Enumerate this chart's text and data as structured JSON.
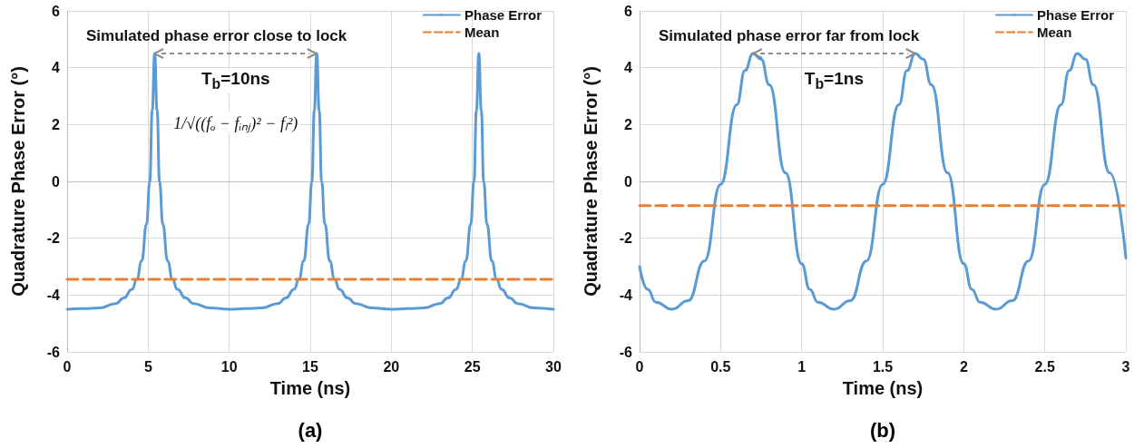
{
  "chart_data": [
    {
      "type": "line",
      "title": "Simulated phase error close to lock",
      "xlabel": "Time (ns)",
      "ylabel": "Quadrature Phase Error (°)",
      "xlim": [
        0,
        30
      ],
      "xticks": [
        0,
        5,
        10,
        15,
        20,
        25,
        30
      ],
      "ylim": [
        -6,
        6
      ],
      "yticks": [
        -6,
        -4,
        -2,
        0,
        2,
        4,
        6
      ],
      "grid": true,
      "legend": "top right",
      "marker": "none",
      "annotations": [
        "(a)",
        "T$_{b}$=10ns",
        "1/√((fₒ − fᵢₙⱼ)² − fₗ²)"
      ],
      "series": [
        {
          "name": "Phase Error",
          "color": "#5b9bd5",
          "line_style": "solid",
          "x": [
            0,
            1,
            2,
            3,
            3.5,
            4,
            4.3,
            4.6,
            4.9,
            5.1,
            5.25,
            5.4,
            5.55,
            5.7,
            5.9,
            6.2,
            6.5,
            6.8,
            7.3,
            7.8,
            8.8,
            10,
            11,
            12,
            13,
            13.5,
            14,
            14.3,
            14.6,
            14.9,
            15.1,
            15.25,
            15.4,
            15.55,
            15.7,
            15.9,
            16.2,
            16.5,
            16.8,
            17.3,
            17.8,
            18.8,
            20,
            21,
            22,
            23,
            23.5,
            24,
            24.3,
            24.6,
            24.9,
            25.1,
            25.25,
            25.4,
            25.55,
            25.7,
            25.9,
            26.2,
            26.5,
            26.8,
            27.3,
            27.8,
            28.8,
            30
          ],
          "values": [
            -4.5,
            -4.48,
            -4.45,
            -4.3,
            -4.1,
            -3.8,
            -3.45,
            -2.8,
            -1.5,
            0,
            2.5,
            4.5,
            2.5,
            0,
            -1.5,
            -2.8,
            -3.45,
            -3.8,
            -4.1,
            -4.3,
            -4.45,
            -4.5,
            -4.48,
            -4.45,
            -4.3,
            -4.1,
            -3.8,
            -3.45,
            -2.8,
            -1.5,
            0,
            2.5,
            4.5,
            2.5,
            0,
            -1.5,
            -2.8,
            -3.45,
            -3.8,
            -4.1,
            -4.3,
            -4.45,
            -4.5,
            -4.48,
            -4.45,
            -4.3,
            -4.1,
            -3.8,
            -3.45,
            -2.8,
            -1.5,
            0,
            2.5,
            4.5,
            2.5,
            0,
            -1.5,
            -2.8,
            -3.45,
            -3.8,
            -4.1,
            -4.3,
            -4.45,
            -4.5
          ]
        },
        {
          "name": "Mean",
          "color": "#ed7d31",
          "line_style": "dashed",
          "x": [
            0,
            30
          ],
          "values": [
            -3.45,
            -3.45
          ]
        }
      ]
    },
    {
      "type": "line",
      "title": "Simulated phase error far from lock",
      "xlabel": "Time (ns)",
      "ylabel": "Quadrature Phase Error (°)",
      "xlim": [
        0,
        3
      ],
      "xticks": [
        0,
        0.5,
        1,
        1.5,
        2,
        2.5,
        3
      ],
      "ylim": [
        -6,
        6
      ],
      "yticks": [
        -6,
        -4,
        -2,
        0,
        2,
        4,
        6
      ],
      "grid": true,
      "legend": "top right",
      "marker": "none",
      "annotations": [
        "(b)",
        "T$_{b}$=1ns"
      ],
      "series": [
        {
          "name": "Phase Error",
          "color": "#5b9bd5",
          "line_style": "solid",
          "x": [
            0,
            0.05,
            0.1,
            0.2,
            0.3,
            0.4,
            0.5,
            0.6,
            0.65,
            0.7,
            0.75,
            0.8,
            0.9,
            1,
            1.05,
            1.1,
            1.2,
            1.3,
            1.4,
            1.5,
            1.6,
            1.65,
            1.7,
            1.75,
            1.8,
            1.9,
            2,
            2.05,
            2.1,
            2.2,
            2.3,
            2.4,
            2.5,
            2.6,
            2.65,
            2.7,
            2.75,
            2.8,
            2.9,
            3
          ],
          "values": [
            -3,
            -3.8,
            -4.25,
            -4.5,
            -4.2,
            -2.8,
            -0.1,
            2.7,
            3.9,
            4.5,
            4.3,
            3.4,
            0.3,
            -2.9,
            -3.8,
            -4.25,
            -4.5,
            -4.2,
            -2.8,
            -0.1,
            2.7,
            3.9,
            4.5,
            4.3,
            3.4,
            0.3,
            -2.9,
            -3.8,
            -4.25,
            -4.5,
            -4.2,
            -2.8,
            -0.1,
            2.7,
            3.9,
            4.5,
            4.3,
            3.4,
            0.3,
            -2.7
          ]
        },
        {
          "name": "Mean",
          "color": "#ed7d31",
          "line_style": "dashed",
          "x": [
            0,
            3
          ],
          "values": [
            -0.85,
            -0.85
          ]
        }
      ]
    }
  ]
}
